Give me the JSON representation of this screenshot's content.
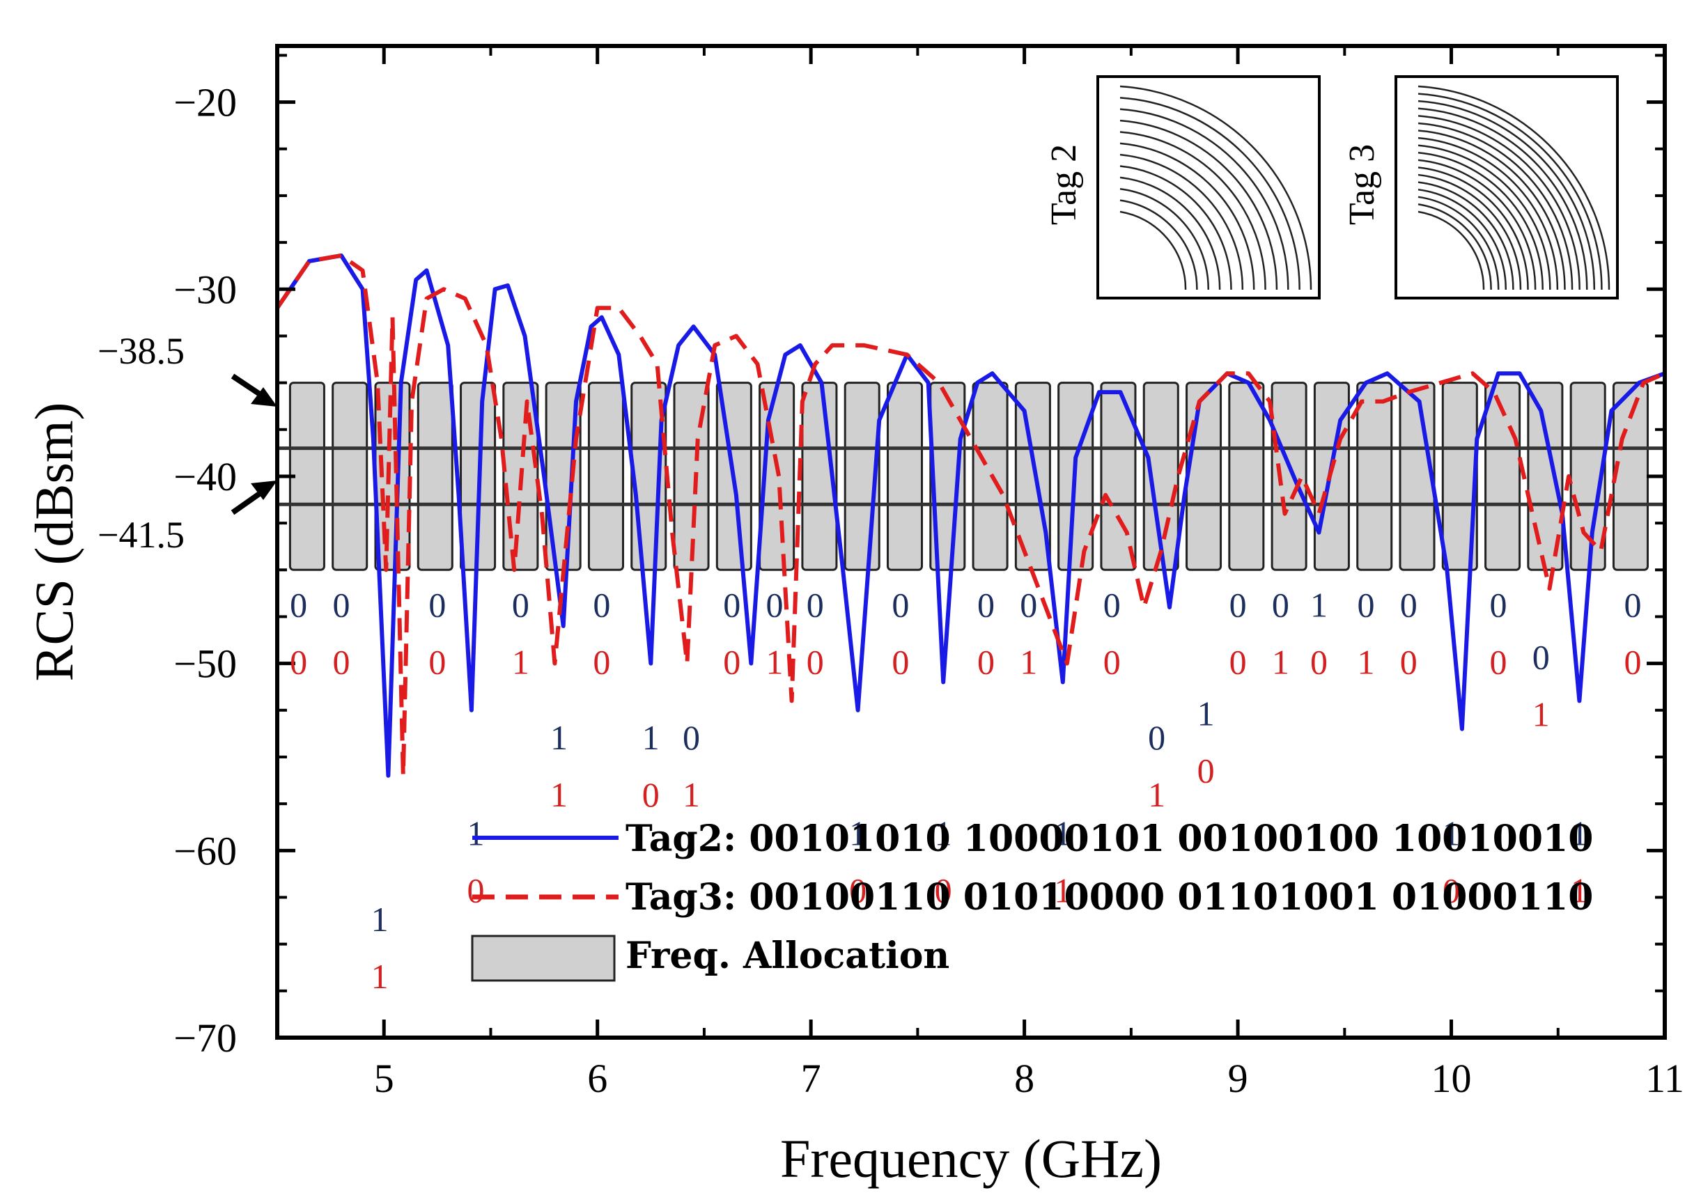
{
  "chart_data": {
    "type": "line",
    "title": "",
    "xlabel": "Frequency (GHz)",
    "ylabel": "RCS (dBsm)",
    "xlim": [
      4.5,
      11
    ],
    "ylim": [
      -70,
      -17
    ],
    "x_ticks": [
      5,
      6,
      7,
      8,
      9,
      10,
      11
    ],
    "x_tick_labels": [
      "5",
      "6",
      "7",
      "8",
      "9",
      "10",
      "11"
    ],
    "y_ticks": [
      -20,
      -30,
      -40,
      -50,
      -60,
      -70
    ],
    "y_tick_labels": [
      "−20",
      "−30",
      "−40",
      "−50",
      "−60",
      "−70"
    ],
    "threshold_lines": [
      {
        "value": -38.5,
        "label": "−38.5"
      },
      {
        "value": -41.5,
        "label": "−41.5"
      }
    ],
    "freq_allocation": {
      "y_top": -35.0,
      "y_bottom": -45.0,
      "bands": [
        [
          4.56,
          4.72
        ],
        [
          4.76,
          4.92
        ],
        [
          4.96,
          5.12
        ],
        [
          5.16,
          5.32
        ],
        [
          5.36,
          5.52
        ],
        [
          5.56,
          5.72
        ],
        [
          5.76,
          5.92
        ],
        [
          5.96,
          6.12
        ],
        [
          6.16,
          6.32
        ],
        [
          6.36,
          6.52
        ],
        [
          6.56,
          6.72
        ],
        [
          6.76,
          6.92
        ],
        [
          6.96,
          7.12
        ],
        [
          7.16,
          7.32
        ],
        [
          7.36,
          7.52
        ],
        [
          7.56,
          7.72
        ],
        [
          7.76,
          7.92
        ],
        [
          7.96,
          8.12
        ],
        [
          8.16,
          8.32
        ],
        [
          8.36,
          8.52
        ],
        [
          8.56,
          8.72
        ],
        [
          8.76,
          8.92
        ],
        [
          8.96,
          9.12
        ],
        [
          9.16,
          9.32
        ],
        [
          9.36,
          9.52
        ],
        [
          9.56,
          9.72
        ],
        [
          9.76,
          9.92
        ],
        [
          9.96,
          10.12
        ],
        [
          10.16,
          10.32
        ],
        [
          10.36,
          10.52
        ],
        [
          10.56,
          10.72
        ],
        [
          10.76,
          10.92
        ]
      ]
    },
    "series": [
      {
        "name": "Tag2",
        "legend_label": "Tag2: 00101010 10000101 00100100 10010010",
        "color": "#1a1ae6",
        "style": "solid",
        "x": [
          4.5,
          4.65,
          4.8,
          4.9,
          4.95,
          5.02,
          5.08,
          5.15,
          5.2,
          5.3,
          5.35,
          5.41,
          5.46,
          5.52,
          5.58,
          5.66,
          5.75,
          5.84,
          5.9,
          5.97,
          6.02,
          6.1,
          6.18,
          6.25,
          6.3,
          6.38,
          6.45,
          6.55,
          6.65,
          6.72,
          6.8,
          6.88,
          6.95,
          7.05,
          7.15,
          7.22,
          7.32,
          7.45,
          7.55,
          7.62,
          7.7,
          7.78,
          7.85,
          8.0,
          8.1,
          8.18,
          8.24,
          8.35,
          8.45,
          8.58,
          8.68,
          8.75,
          8.82,
          8.95,
          9.05,
          9.15,
          9.28,
          9.38,
          9.48,
          9.6,
          9.7,
          9.85,
          9.98,
          10.05,
          10.12,
          10.22,
          10.32,
          10.42,
          10.52,
          10.6,
          10.66,
          10.75,
          10.88,
          11.0
        ],
        "y": [
          -31,
          -28.5,
          -28.2,
          -30,
          -38,
          -56,
          -35,
          -29.5,
          -29,
          -33,
          -41,
          -52.5,
          -36,
          -30,
          -29.8,
          -32.5,
          -40,
          -48,
          -36,
          -32,
          -31.5,
          -33.5,
          -41,
          -50,
          -37,
          -33,
          -32,
          -33.5,
          -41,
          -50,
          -37,
          -33.5,
          -33,
          -35,
          -45,
          -52.5,
          -37,
          -33.5,
          -35,
          -51,
          -38,
          -35,
          -34.5,
          -36.5,
          -43,
          -51,
          -39,
          -35.5,
          -35.5,
          -39,
          -47,
          -41,
          -36,
          -34.5,
          -35,
          -37,
          -40.5,
          -43,
          -37,
          -35,
          -34.5,
          -36,
          -45,
          -53.5,
          -38,
          -34.5,
          -34.5,
          -36.5,
          -42,
          -52,
          -43,
          -36.5,
          -35,
          -34.5
        ]
      },
      {
        "name": "Tag3",
        "legend_label": "Tag3: 00100110 01010000 01101001 01000110",
        "color": "#e01c1c",
        "style": "dashed",
        "x": [
          4.5,
          4.65,
          4.8,
          4.9,
          4.97,
          5.01,
          5.04,
          5.09,
          5.13,
          5.2,
          5.28,
          5.38,
          5.48,
          5.55,
          5.61,
          5.67,
          5.74,
          5.8,
          5.9,
          6.0,
          6.1,
          6.2,
          6.28,
          6.35,
          6.42,
          6.47,
          6.55,
          6.65,
          6.75,
          6.85,
          6.91,
          6.96,
          7.02,
          7.1,
          7.25,
          7.45,
          7.6,
          7.75,
          7.9,
          8.0,
          8.1,
          8.2,
          8.28,
          8.38,
          8.48,
          8.56,
          8.64,
          8.72,
          8.82,
          8.95,
          9.05,
          9.15,
          9.22,
          9.3,
          9.38,
          9.48,
          9.58,
          9.68,
          9.8,
          9.95,
          10.1,
          10.2,
          10.3,
          10.38,
          10.46,
          10.55,
          10.62,
          10.7,
          10.8,
          10.9,
          11.0
        ],
        "y": [
          -31,
          -28.5,
          -28.2,
          -29,
          -35,
          -45,
          -31.5,
          -56,
          -36,
          -30.5,
          -30,
          -30.5,
          -33,
          -38,
          -45,
          -36,
          -42,
          -50,
          -38,
          -31,
          -31,
          -32.5,
          -34,
          -43,
          -50,
          -38,
          -33,
          -32.5,
          -34,
          -40,
          -52,
          -36,
          -34,
          -33,
          -33,
          -33.5,
          -35,
          -38,
          -41,
          -44,
          -47,
          -50,
          -44,
          -41,
          -43,
          -47,
          -44,
          -40,
          -36,
          -34.5,
          -34.5,
          -36,
          -42,
          -40,
          -42,
          -38,
          -36,
          -36,
          -35.5,
          -35,
          -34.5,
          -35.5,
          -38,
          -42,
          -46,
          -40,
          -43,
          -44,
          -38,
          -35,
          -34.5
        ]
      }
    ],
    "bit_labels": [
      {
        "x": 4.6,
        "top": "0",
        "bottom": "0",
        "level": "high"
      },
      {
        "x": 4.8,
        "top": "0",
        "bottom": "0",
        "level": "high"
      },
      {
        "x": 4.98,
        "top": "1",
        "bottom": "1",
        "level": "low2"
      },
      {
        "x": 5.25,
        "top": "0",
        "bottom": "0",
        "level": "high"
      },
      {
        "x": 5.43,
        "top": "1",
        "bottom": "0",
        "level": "low1"
      },
      {
        "x": 5.64,
        "top": "0",
        "bottom": "1",
        "level": "high"
      },
      {
        "x": 5.82,
        "top": "1",
        "bottom": "1",
        "level": "mid"
      },
      {
        "x": 6.02,
        "top": "0",
        "bottom": "0",
        "level": "high"
      },
      {
        "x": 6.25,
        "top": "1",
        "bottom": "0",
        "level": "mid"
      },
      {
        "x": 6.44,
        "top": "0",
        "bottom": "1",
        "level": "mid"
      },
      {
        "x": 6.63,
        "top": "0",
        "bottom": "0",
        "level": "high"
      },
      {
        "x": 6.83,
        "top": "0",
        "bottom": "1",
        "level": "high"
      },
      {
        "x": 7.02,
        "top": "0",
        "bottom": "0",
        "level": "high"
      },
      {
        "x": 7.22,
        "top": "1",
        "bottom": "0",
        "level": "low1"
      },
      {
        "x": 7.42,
        "top": "0",
        "bottom": "0",
        "level": "high"
      },
      {
        "x": 7.62,
        "top": "1",
        "bottom": "0",
        "level": "low1"
      },
      {
        "x": 7.82,
        "top": "0",
        "bottom": "0",
        "level": "high"
      },
      {
        "x": 8.02,
        "top": "0",
        "bottom": "1",
        "level": "high"
      },
      {
        "x": 8.18,
        "top": "1",
        "bottom": "1",
        "level": "low1"
      },
      {
        "x": 8.41,
        "top": "0",
        "bottom": "0",
        "level": "high"
      },
      {
        "x": 8.62,
        "top": "0",
        "bottom": "1",
        "level": "mid"
      },
      {
        "x": 8.85,
        "top": "1",
        "bottom": "0",
        "level": "mid2"
      },
      {
        "x": 9.0,
        "top": "0",
        "bottom": "0",
        "level": "high"
      },
      {
        "x": 9.2,
        "top": "0",
        "bottom": "1",
        "level": "high"
      },
      {
        "x": 9.38,
        "top": "1",
        "bottom": "0",
        "level": "high"
      },
      {
        "x": 9.6,
        "top": "0",
        "bottom": "1",
        "level": "high"
      },
      {
        "x": 9.8,
        "top": "0",
        "bottom": "0",
        "level": "high"
      },
      {
        "x": 10.0,
        "top": "1",
        "bottom": "0",
        "level": "low1"
      },
      {
        "x": 10.22,
        "top": "0",
        "bottom": "0",
        "level": "high"
      },
      {
        "x": 10.42,
        "top": "0",
        "bottom": "1",
        "level": "mid3"
      },
      {
        "x": 10.6,
        "top": "1",
        "bottom": "1",
        "level": "low1"
      },
      {
        "x": 10.85,
        "top": "0",
        "bottom": "0",
        "level": "high"
      }
    ],
    "legend": {
      "placement": "bottom-center",
      "freq_allocation_label": "Freq. Allocation"
    },
    "insets": [
      {
        "label": "Tag 2",
        "rings": 12
      },
      {
        "label": "Tag 3",
        "rings": 18
      }
    ]
  }
}
